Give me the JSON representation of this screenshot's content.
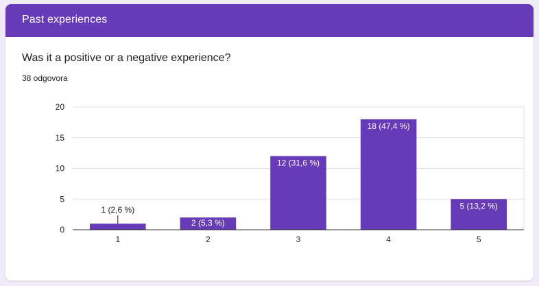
{
  "section": {
    "title": "Past experiences"
  },
  "question": {
    "text": "Was it a positive or a negative experience?",
    "response_count": "38 odgovora"
  },
  "colors": {
    "accent": "#673ab7",
    "bar": "#673ab7",
    "background": "#f0ebf8"
  },
  "chart_data": {
    "type": "bar",
    "categories": [
      "1",
      "2",
      "3",
      "4",
      "5"
    ],
    "values": [
      1,
      2,
      12,
      18,
      5
    ],
    "data_labels": [
      "1 (2,6 %)",
      "2 (5,3 %)",
      "12 (31,6 %)",
      "18 (47,4 %)",
      "5 (13,2 %)"
    ],
    "title": "",
    "xlabel": "",
    "ylabel": "",
    "ylim": [
      0,
      20
    ],
    "yticks": [
      "0",
      "5",
      "10",
      "15",
      "20"
    ],
    "grid": true,
    "legend": "none"
  }
}
